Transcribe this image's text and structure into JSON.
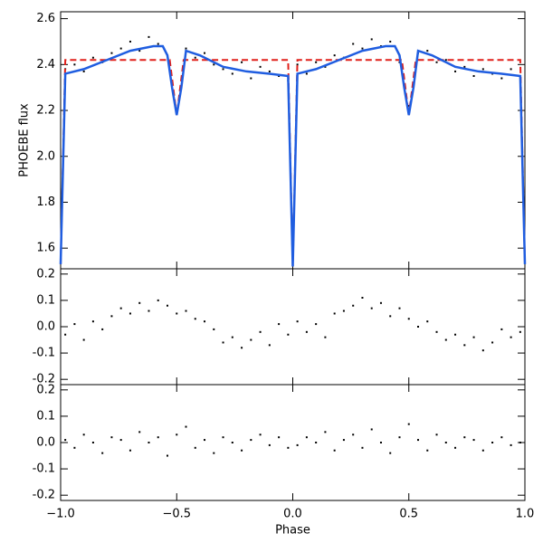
{
  "chart_data": [
    {
      "type": "combo",
      "ylabel": "PHOEBE flux",
      "xlim": [
        -1,
        1
      ],
      "ylim": [
        1.51,
        2.63
      ],
      "yticks": [
        1.6,
        1.8,
        {
          "value": 2,
          "label": "2.0"
        },
        2.2,
        2.4,
        2.6
      ],
      "series": [
        {
          "kind": "scatter",
          "color": "#000000",
          "x": [
            -0.98,
            -0.94,
            -0.9,
            -0.86,
            -0.82,
            -0.78,
            -0.74,
            -0.7,
            -0.66,
            -0.62,
            -0.58,
            -0.54,
            -0.5,
            -0.46,
            -0.42,
            -0.38,
            -0.34,
            -0.3,
            -0.26,
            -0.22,
            -0.18,
            -0.14,
            -0.1,
            -0.06,
            -0.02,
            0.02,
            0.06,
            0.1,
            0.14,
            0.18,
            0.22,
            0.26,
            0.3,
            0.34,
            0.38,
            0.42,
            0.46,
            0.5,
            0.54,
            0.58,
            0.62,
            0.66,
            0.7,
            0.74,
            0.78,
            0.82,
            0.86,
            0.9,
            0.94,
            0.98
          ],
          "values": [
            2.38,
            2.4,
            2.37,
            2.43,
            2.41,
            2.45,
            2.47,
            2.5,
            2.46,
            2.52,
            2.49,
            2.44,
            2.2,
            2.47,
            2.43,
            2.45,
            2.4,
            2.38,
            2.36,
            2.41,
            2.34,
            2.39,
            2.37,
            2.35,
            2.33,
            2.4,
            2.36,
            2.41,
            2.39,
            2.44,
            2.43,
            2.49,
            2.47,
            2.51,
            2.48,
            2.5,
            2.41,
            2.22,
            2.45,
            2.46,
            2.41,
            2.42,
            2.37,
            2.39,
            2.35,
            2.38,
            2.36,
            2.34,
            2.38,
            2.35
          ]
        },
        {
          "kind": "line",
          "dashed": true,
          "color": "#e0201b",
          "x": [
            -1,
            -0.98,
            -0.53,
            -0.5,
            -0.47,
            -0.02,
            0,
            0.02,
            0.47,
            0.5,
            0.53,
            0.98,
            1
          ],
          "values": [
            1.53,
            2.42,
            2.42,
            2.18,
            2.42,
            2.42,
            1.52,
            2.42,
            2.42,
            2.18,
            2.42,
            2.42,
            1.53
          ]
        },
        {
          "kind": "line",
          "dashed": false,
          "color": "#1f5de0",
          "x": [
            -1,
            -0.98,
            -0.9,
            -0.8,
            -0.7,
            -0.6,
            -0.56,
            -0.54,
            -0.52,
            -0.5,
            -0.48,
            -0.46,
            -0.4,
            -0.3,
            -0.2,
            -0.1,
            -0.02,
            0,
            0.02,
            0.1,
            0.2,
            0.3,
            0.4,
            0.44,
            0.46,
            0.48,
            0.5,
            0.52,
            0.54,
            0.6,
            0.7,
            0.8,
            0.9,
            0.98,
            1
          ],
          "values": [
            1.53,
            2.36,
            2.38,
            2.42,
            2.46,
            2.48,
            2.48,
            2.44,
            2.3,
            2.18,
            2.3,
            2.46,
            2.44,
            2.39,
            2.37,
            2.36,
            2.35,
            1.52,
            2.36,
            2.38,
            2.42,
            2.46,
            2.48,
            2.48,
            2.44,
            2.3,
            2.18,
            2.3,
            2.46,
            2.44,
            2.39,
            2.37,
            2.36,
            2.35,
            1.53
          ]
        }
      ]
    },
    {
      "type": "scatter",
      "xlim": [
        -1,
        1
      ],
      "ylim": [
        -0.22,
        0.22
      ],
      "yticks": [
        0.2,
        0.1,
        {
          "value": 0,
          "label": "0.0"
        },
        -0.1,
        -0.2
      ],
      "series": [
        {
          "kind": "scatter",
          "color": "#000000",
          "x": [
            -0.98,
            -0.94,
            -0.9,
            -0.86,
            -0.82,
            -0.78,
            -0.74,
            -0.7,
            -0.66,
            -0.62,
            -0.58,
            -0.54,
            -0.5,
            -0.46,
            -0.42,
            -0.38,
            -0.34,
            -0.3,
            -0.26,
            -0.22,
            -0.18,
            -0.14,
            -0.1,
            -0.06,
            -0.02,
            0.02,
            0.06,
            0.1,
            0.14,
            0.18,
            0.22,
            0.26,
            0.3,
            0.34,
            0.38,
            0.42,
            0.46,
            0.5,
            0.54,
            0.58,
            0.62,
            0.66,
            0.7,
            0.74,
            0.78,
            0.82,
            0.86,
            0.9,
            0.94,
            0.98
          ],
          "values": [
            -0.03,
            0.01,
            -0.05,
            0.02,
            -0.01,
            0.04,
            0.07,
            0.05,
            0.09,
            0.06,
            0.1,
            0.08,
            0.05,
            0.06,
            0.03,
            0.02,
            -0.01,
            -0.06,
            -0.04,
            -0.08,
            -0.05,
            -0.02,
            -0.07,
            0.01,
            -0.03,
            0.02,
            -0.02,
            0.01,
            -0.04,
            0.05,
            0.06,
            0.08,
            0.11,
            0.07,
            0.09,
            0.04,
            0.07,
            0.03,
            0,
            0.02,
            -0.02,
            -0.05,
            -0.03,
            -0.07,
            -0.04,
            -0.09,
            -0.06,
            -0.01,
            -0.04,
            -0.02
          ]
        }
      ]
    },
    {
      "type": "scatter",
      "xlabel": "Phase",
      "xlim": [
        -1,
        1
      ],
      "ylim": [
        -0.22,
        0.22
      ],
      "yticks": [
        0.2,
        0.1,
        {
          "value": 0,
          "label": "0.0"
        },
        -0.1,
        -0.2
      ],
      "xticks": [
        {
          "value": -1,
          "label": "−1.0"
        },
        {
          "value": -0.5,
          "label": "−0.5"
        },
        {
          "value": 0,
          "label": "0.0"
        },
        0.5,
        {
          "value": 1,
          "label": "1.0"
        }
      ],
      "series": [
        {
          "kind": "scatter",
          "color": "#000000",
          "x": [
            -0.98,
            -0.94,
            -0.9,
            -0.86,
            -0.82,
            -0.78,
            -0.74,
            -0.7,
            -0.66,
            -0.62,
            -0.58,
            -0.54,
            -0.5,
            -0.46,
            -0.42,
            -0.38,
            -0.34,
            -0.3,
            -0.26,
            -0.22,
            -0.18,
            -0.14,
            -0.1,
            -0.06,
            -0.02,
            0.02,
            0.06,
            0.1,
            0.14,
            0.18,
            0.22,
            0.26,
            0.3,
            0.34,
            0.38,
            0.42,
            0.46,
            0.5,
            0.54,
            0.58,
            0.62,
            0.66,
            0.7,
            0.74,
            0.78,
            0.82,
            0.86,
            0.9,
            0.94,
            0.98
          ],
          "values": [
            0.01,
            -0.02,
            0.03,
            0,
            -0.04,
            0.02,
            0.01,
            -0.03,
            0.04,
            0,
            0.02,
            -0.05,
            0.03,
            0.06,
            -0.02,
            0.01,
            -0.04,
            0.02,
            0,
            -0.03,
            0.01,
            0.03,
            -0.01,
            0.02,
            -0.02,
            -0.01,
            0.02,
            0,
            0.04,
            -0.03,
            0.01,
            0.03,
            -0.02,
            0.05,
            0,
            -0.04,
            0.02,
            0.07,
            0.01,
            -0.03,
            0.03,
            0,
            -0.02,
            0.02,
            0.01,
            -0.03,
            0,
            0.02,
            -0.01,
            0
          ]
        }
      ]
    }
  ]
}
